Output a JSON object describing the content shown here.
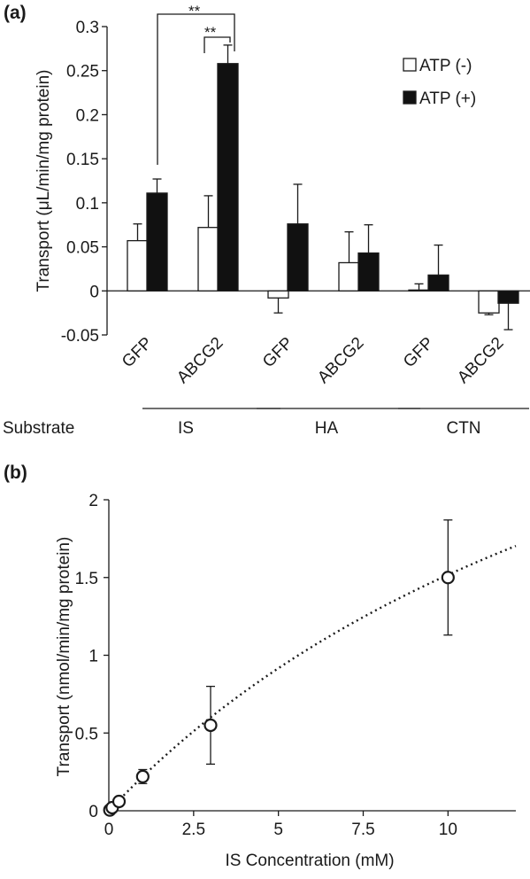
{
  "chart_data": [
    {
      "panel": "(a)",
      "type": "bar",
      "ylabel": "Transport (μL/min/mg protein)",
      "ylim": [
        -0.05,
        0.3
      ],
      "yticks": [
        0.3,
        0.25,
        0.2,
        0.15,
        0.1,
        0.05,
        0,
        -0.05
      ],
      "ytick_labels": [
        "0.3",
        "0.25",
        "0.2",
        "0.15",
        "0.1",
        "0.05",
        "0",
        "-0.05"
      ],
      "categories": [
        "GFP",
        "ABCG2",
        "GFP",
        "ABCG2",
        "GFP",
        "ABCG2"
      ],
      "groups": [
        "IS",
        "HA",
        "CTN"
      ],
      "group_header": "Substrate",
      "series": [
        {
          "name": "ATP (-)",
          "fill": "#ffffff",
          "values": [
            0.057,
            0.072,
            -0.008,
            0.032,
            0.001,
            -0.025
          ],
          "errors": [
            0.019,
            0.036,
            0.017,
            0.035,
            0.007,
            0.002
          ]
        },
        {
          "name": "ATP (+)",
          "fill": "#111111",
          "values": [
            0.111,
            0.258,
            0.076,
            0.043,
            0.018,
            -0.014
          ],
          "errors": [
            0.016,
            0.021,
            0.045,
            0.032,
            0.034,
            0.03
          ]
        }
      ],
      "legend_position": "top-right",
      "annotations": [
        "**",
        "**"
      ]
    },
    {
      "panel": "(b)",
      "type": "scatter",
      "xlabel": "IS Concentration (mM)",
      "ylabel": "Transport (nmol/min/mg protein)",
      "xlim": [
        0,
        12
      ],
      "ylim": [
        0,
        2
      ],
      "xticks": [
        0,
        2.5,
        5,
        7.5,
        10
      ],
      "xtick_labels": [
        "0",
        "2.5",
        "5",
        "7.5",
        "10"
      ],
      "yticks": [
        0,
        0.5,
        1,
        1.5,
        2
      ],
      "ytick_labels": [
        "0",
        "0.5",
        "1",
        "1.5",
        "2"
      ],
      "points": [
        {
          "x": 0.03,
          "y": 0.005,
          "err": 0.005
        },
        {
          "x": 0.1,
          "y": 0.02,
          "err": 0.01
        },
        {
          "x": 0.3,
          "y": 0.06,
          "err": 0.015
        },
        {
          "x": 1,
          "y": 0.22,
          "err": 0.045
        },
        {
          "x": 3,
          "y": 0.55,
          "err": 0.25
        },
        {
          "x": 10,
          "y": 1.5,
          "err": 0.37
        }
      ],
      "fit": {
        "style": "dotted",
        "model": "Michaelis-Menten",
        "vmax": 4.4,
        "km": 19
      }
    }
  ]
}
